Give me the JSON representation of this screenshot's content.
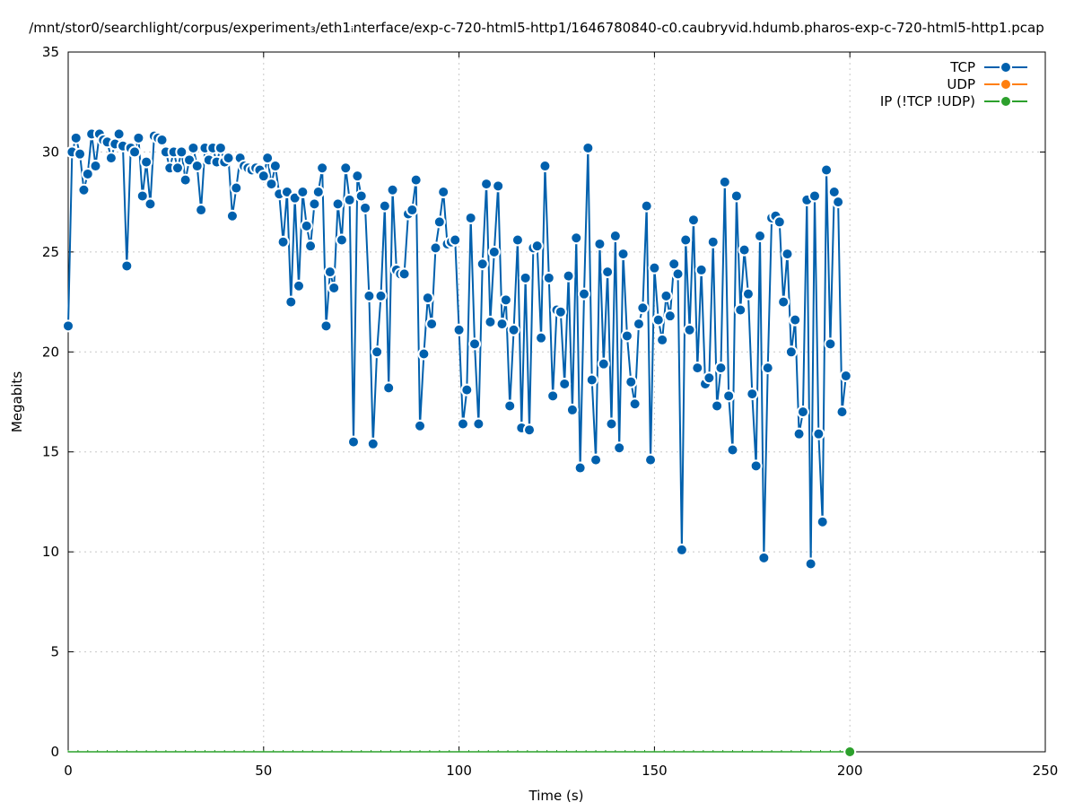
{
  "chart_data": {
    "type": "line",
    "title": "/mnt/stor0/searchlight/corpus/experiment₃/eth1ᵢnterface/exp-c-720-html5-http1/1646780840-c0.caubryvid.hdumb.pharos-exp-c-720-html5-http1.pcap",
    "xlabel": "Time (s)",
    "ylabel": "Megabits",
    "xlim": [
      0,
      250
    ],
    "ylim": [
      0,
      35
    ],
    "xticks": [
      "0",
      "50",
      "100",
      "150",
      "200",
      "250"
    ],
    "yticks": [
      "0",
      "5",
      "10",
      "15",
      "20",
      "25",
      "30",
      "35"
    ],
    "grid": true,
    "legend_position": "top-right",
    "series": [
      {
        "name": "TCP",
        "color": "#0060ad",
        "x_start": 0,
        "x_step": 1,
        "values": [
          21.3,
          30.0,
          30.7,
          29.9,
          28.1,
          28.9,
          30.9,
          29.3,
          30.9,
          30.6,
          30.5,
          29.7,
          30.4,
          30.9,
          30.3,
          24.3,
          30.2,
          30.0,
          30.7,
          27.8,
          29.5,
          27.4,
          30.8,
          30.7,
          30.6,
          30.0,
          29.2,
          30.0,
          29.2,
          30.0,
          28.6,
          29.6,
          30.2,
          29.3,
          27.1,
          30.2,
          29.6,
          30.2,
          29.5,
          30.2,
          29.5,
          29.7,
          26.8,
          28.2,
          29.7,
          29.3,
          29.2,
          29.1,
          29.2,
          29.1,
          28.8,
          29.7,
          28.4,
          29.3,
          27.9,
          25.5,
          28.0,
          22.5,
          27.7,
          23.3,
          28.0,
          26.3,
          25.3,
          27.4,
          28.0,
          29.2,
          21.3,
          24.0,
          23.2,
          27.4,
          25.6,
          29.2,
          27.6,
          15.5,
          28.8,
          27.8,
          27.2,
          22.8,
          15.4,
          20.0,
          22.8,
          27.3,
          18.2,
          28.1,
          24.1,
          23.9,
          23.9,
          26.9,
          27.1,
          28.6,
          16.3,
          19.9,
          22.7,
          21.4,
          25.2,
          26.5,
          28.0,
          25.4,
          25.5,
          25.6,
          21.1,
          16.4,
          18.1,
          26.7,
          20.4,
          16.4,
          24.4,
          28.4,
          21.5,
          25.0,
          28.3,
          21.4,
          22.6,
          17.3,
          21.1,
          25.6,
          16.2,
          23.7,
          16.1,
          25.2,
          25.3,
          20.7,
          29.3,
          23.7,
          17.8,
          22.1,
          22.0,
          18.4,
          23.8,
          17.1,
          25.7,
          14.2,
          22.9,
          30.2,
          18.6,
          14.6,
          25.4,
          19.4,
          24.0,
          16.4,
          25.8,
          15.2,
          24.9,
          20.8,
          18.5,
          17.4,
          21.4,
          22.2,
          27.3,
          14.6,
          24.2,
          21.6,
          20.6,
          22.8,
          21.8,
          24.4,
          23.9,
          10.1,
          25.6,
          21.1,
          26.6,
          19.2,
          24.1,
          18.4,
          18.7,
          25.5,
          17.3,
          19.2,
          28.5,
          17.8,
          15.1,
          27.8,
          22.1,
          25.1,
          22.9,
          17.9,
          14.3,
          25.8,
          9.7,
          19.2,
          26.7,
          26.8,
          26.5,
          22.5,
          24.9,
          20.0,
          21.6,
          15.9,
          17.0,
          27.6,
          9.4,
          27.8,
          15.9,
          11.5,
          29.1,
          20.4,
          28.0,
          27.5,
          17.0,
          18.8
        ]
      },
      {
        "name": "UDP",
        "color": "#ff7f0e",
        "x_start": 0,
        "x_step": 1,
        "values": []
      },
      {
        "name": "IP (!TCP  !UDP)",
        "color": "#2ca02c",
        "x": [
          0,
          200
        ],
        "values": [
          0,
          0
        ]
      }
    ]
  }
}
